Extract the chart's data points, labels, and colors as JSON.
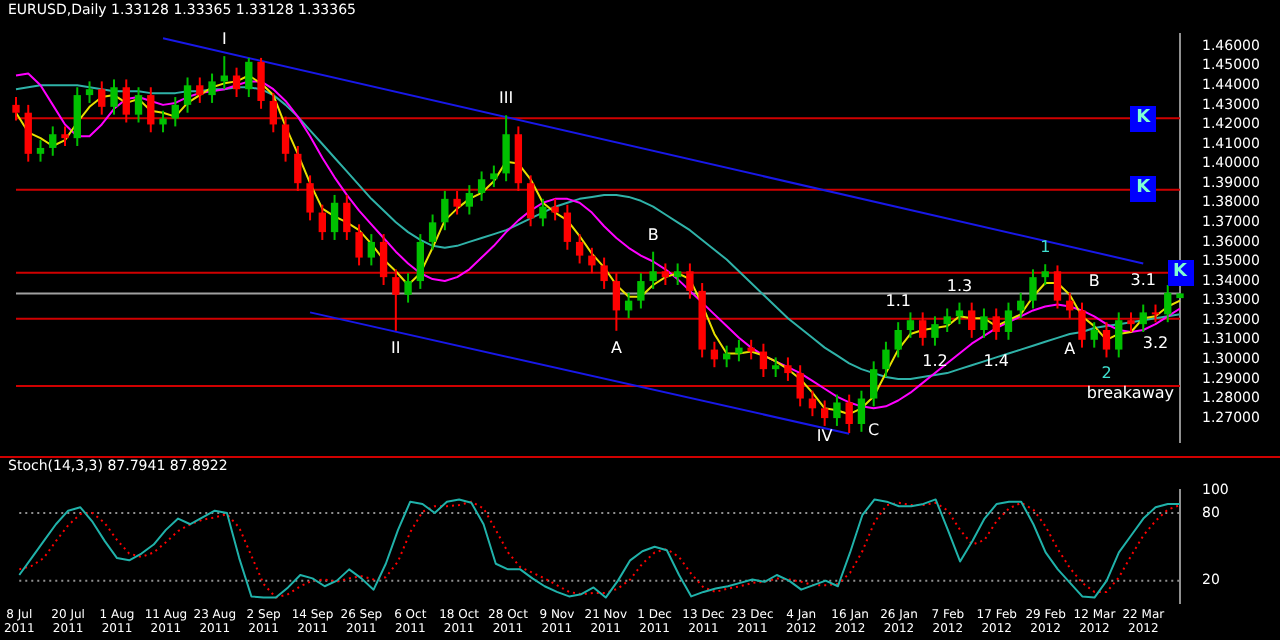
{
  "chart_data": [
    {
      "type": "candlestick",
      "title": "EURUSD,Daily  1.33128 1.33365 1.33128 1.33365",
      "categories": [
        "8 Jul 2011",
        null,
        null,
        null,
        "20 Jul 2011",
        null,
        null,
        null,
        "1 Aug 2011",
        null,
        null,
        null,
        "11 Aug 2011",
        null,
        null,
        null,
        "23 Aug 2011",
        null,
        null,
        null,
        "2 Sep 2011",
        null,
        null,
        null,
        "14 Sep 2011",
        null,
        null,
        null,
        "26 Sep 2011",
        null,
        null,
        null,
        "6 Oct 2011",
        null,
        null,
        null,
        "18 Oct 2011",
        null,
        null,
        null,
        "28 Oct 2011",
        null,
        null,
        null,
        "9 Nov 2011",
        null,
        null,
        null,
        "21 Nov 2011",
        null,
        null,
        null,
        "1 Dec 2011",
        null,
        null,
        null,
        "13 Dec 2011",
        null,
        null,
        null,
        "23 Dec 2011",
        null,
        null,
        null,
        "4 Jan 2012",
        null,
        null,
        null,
        "16 Jan 2012",
        null,
        null,
        null,
        "26 Jan 2012",
        null,
        null,
        null,
        "7 Feb 2012",
        null,
        null,
        null,
        "17 Feb 2012",
        null,
        null,
        null,
        "29 Feb 2012",
        null,
        null,
        null,
        "12 Mar 2012",
        null,
        null,
        null,
        "22 Mar 2012",
        null,
        null,
        null
      ],
      "ohlc": [
        [
          1.43,
          1.434,
          1.422,
          1.426
        ],
        [
          1.426,
          1.43,
          1.401,
          1.405
        ],
        [
          1.405,
          1.412,
          1.401,
          1.408
        ],
        [
          1.408,
          1.419,
          1.404,
          1.415
        ],
        [
          1.415,
          1.419,
          1.409,
          1.413
        ],
        [
          1.413,
          1.439,
          1.409,
          1.435
        ],
        [
          1.435,
          1.442,
          1.431,
          1.438
        ],
        [
          1.438,
          1.442,
          1.425,
          1.429
        ],
        [
          1.429,
          1.443,
          1.425,
          1.439
        ],
        [
          1.439,
          1.443,
          1.421,
          1.425
        ],
        [
          1.425,
          1.439,
          1.421,
          1.435
        ],
        [
          1.435,
          1.439,
          1.416,
          1.42
        ],
        [
          1.42,
          1.427,
          1.416,
          1.423
        ],
        [
          1.423,
          1.434,
          1.419,
          1.43
        ],
        [
          1.43,
          1.444,
          1.426,
          1.44
        ],
        [
          1.44,
          1.444,
          1.431,
          1.435
        ],
        [
          1.435,
          1.446,
          1.431,
          1.442
        ],
        [
          1.442,
          1.4549,
          1.438,
          1.445
        ],
        [
          1.445,
          1.449,
          1.434,
          1.438
        ],
        [
          1.438,
          1.454,
          1.434,
          1.452
        ],
        [
          1.452,
          1.454,
          1.428,
          1.432
        ],
        [
          1.432,
          1.436,
          1.416,
          1.42
        ],
        [
          1.42,
          1.424,
          1.401,
          1.405
        ],
        [
          1.405,
          1.409,
          1.386,
          1.39
        ],
        [
          1.39,
          1.394,
          1.371,
          1.375
        ],
        [
          1.375,
          1.379,
          1.361,
          1.365
        ],
        [
          1.365,
          1.384,
          1.361,
          1.38
        ],
        [
          1.38,
          1.384,
          1.361,
          1.365
        ],
        [
          1.365,
          1.369,
          1.348,
          1.352
        ],
        [
          1.352,
          1.364,
          1.348,
          1.36
        ],
        [
          1.36,
          1.364,
          1.338,
          1.342
        ],
        [
          1.342,
          1.346,
          1.3146,
          1.333
        ],
        [
          1.333,
          1.344,
          1.329,
          1.34
        ],
        [
          1.34,
          1.364,
          1.336,
          1.36
        ],
        [
          1.36,
          1.374,
          1.356,
          1.37
        ],
        [
          1.37,
          1.386,
          1.366,
          1.382
        ],
        [
          1.382,
          1.386,
          1.374,
          1.378
        ],
        [
          1.378,
          1.389,
          1.374,
          1.385
        ],
        [
          1.385,
          1.396,
          1.381,
          1.392
        ],
        [
          1.392,
          1.399,
          1.388,
          1.395
        ],
        [
          1.395,
          1.4247,
          1.391,
          1.415
        ],
        [
          1.415,
          1.419,
          1.386,
          1.39
        ],
        [
          1.39,
          1.394,
          1.368,
          1.372
        ],
        [
          1.372,
          1.382,
          1.368,
          1.378
        ],
        [
          1.378,
          1.382,
          1.371,
          1.375
        ],
        [
          1.375,
          1.379,
          1.356,
          1.36
        ],
        [
          1.36,
          1.364,
          1.349,
          1.353
        ],
        [
          1.353,
          1.357,
          1.344,
          1.348
        ],
        [
          1.348,
          1.352,
          1.336,
          1.34
        ],
        [
          1.34,
          1.344,
          1.3146,
          1.325
        ],
        [
          1.325,
          1.334,
          1.321,
          1.33
        ],
        [
          1.33,
          1.344,
          1.326,
          1.34
        ],
        [
          1.34,
          1.355,
          1.336,
          1.345
        ],
        [
          1.345,
          1.349,
          1.338,
          1.342
        ],
        [
          1.342,
          1.349,
          1.338,
          1.345
        ],
        [
          1.345,
          1.349,
          1.331,
          1.335
        ],
        [
          1.335,
          1.339,
          1.301,
          1.305
        ],
        [
          1.305,
          1.309,
          1.296,
          1.3
        ],
        [
          1.3,
          1.307,
          1.296,
          1.303
        ],
        [
          1.303,
          1.31,
          1.299,
          1.306
        ],
        [
          1.306,
          1.31,
          1.3,
          1.304
        ],
        [
          1.304,
          1.308,
          1.291,
          1.295
        ],
        [
          1.295,
          1.301,
          1.291,
          1.297
        ],
        [
          1.297,
          1.301,
          1.289,
          1.293
        ],
        [
          1.293,
          1.297,
          1.276,
          1.28
        ],
        [
          1.28,
          1.284,
          1.271,
          1.275
        ],
        [
          1.275,
          1.279,
          1.266,
          1.27
        ],
        [
          1.27,
          1.282,
          1.266,
          1.278
        ],
        [
          1.278,
          1.282,
          1.2624,
          1.267
        ],
        [
          1.267,
          1.284,
          1.263,
          1.28
        ],
        [
          1.28,
          1.299,
          1.276,
          1.295
        ],
        [
          1.295,
          1.309,
          1.291,
          1.305
        ],
        [
          1.305,
          1.319,
          1.301,
          1.315
        ],
        [
          1.315,
          1.324,
          1.311,
          1.32
        ],
        [
          1.32,
          1.324,
          1.307,
          1.311
        ],
        [
          1.311,
          1.322,
          1.307,
          1.318
        ],
        [
          1.318,
          1.326,
          1.314,
          1.322
        ],
        [
          1.322,
          1.329,
          1.318,
          1.325
        ],
        [
          1.325,
          1.329,
          1.311,
          1.315
        ],
        [
          1.315,
          1.326,
          1.311,
          1.322
        ],
        [
          1.322,
          1.326,
          1.31,
          1.314
        ],
        [
          1.314,
          1.329,
          1.31,
          1.325
        ],
        [
          1.325,
          1.334,
          1.321,
          1.33
        ],
        [
          1.33,
          1.346,
          1.326,
          1.342
        ],
        [
          1.342,
          1.3486,
          1.338,
          1.345
        ],
        [
          1.345,
          1.348,
          1.326,
          1.33
        ],
        [
          1.33,
          1.334,
          1.321,
          1.325
        ],
        [
          1.325,
          1.329,
          1.306,
          1.31
        ],
        [
          1.31,
          1.319,
          1.306,
          1.315
        ],
        [
          1.315,
          1.319,
          1.301,
          1.305
        ],
        [
          1.305,
          1.324,
          1.301,
          1.32
        ],
        [
          1.32,
          1.324,
          1.314,
          1.318
        ],
        [
          1.318,
          1.328,
          1.314,
          1.324
        ],
        [
          1.324,
          1.328,
          1.319,
          1.323
        ],
        [
          1.323,
          1.338,
          1.319,
          1.334
        ],
        [
          1.3313,
          1.3337,
          1.3313,
          1.3337
        ]
      ],
      "series": [
        {
          "type": "line",
          "color": "#e8e000",
          "values": [
            1.426,
            1.416,
            1.413,
            1.409,
            1.412,
            1.421,
            1.429,
            1.434,
            1.435,
            1.431,
            1.433,
            1.427,
            1.426,
            1.424,
            1.431,
            1.435,
            1.439,
            1.441,
            1.442,
            1.445,
            1.441,
            1.435,
            1.419,
            1.405,
            1.39,
            1.377,
            1.373,
            1.37,
            1.366,
            1.359,
            1.351,
            1.345,
            1.338,
            1.344,
            1.357,
            1.371,
            1.377,
            1.382,
            1.385,
            1.391,
            1.401,
            1.4,
            1.392,
            1.38,
            1.375,
            1.371,
            1.363,
            1.354,
            1.347,
            1.338,
            1.332,
            1.332,
            1.338,
            1.342,
            1.344,
            1.341,
            1.328,
            1.313,
            1.303,
            1.303,
            1.304,
            1.302,
            1.299,
            1.295,
            1.29,
            1.283,
            1.275,
            1.274,
            1.272,
            1.275,
            1.281,
            1.293,
            1.305,
            1.313,
            1.315,
            1.316,
            1.317,
            1.322,
            1.321,
            1.321,
            1.317,
            1.32,
            1.323,
            1.332,
            1.339,
            1.339,
            1.333,
            1.322,
            1.317,
            1.31,
            1.313,
            1.314,
            1.321,
            1.322,
            1.327,
            1.33
          ]
        },
        {
          "type": "line",
          "color": "#ff00ff",
          "values": [
            1.445,
            1.446,
            1.44,
            1.43,
            1.42,
            1.414,
            1.414,
            1.42,
            1.428,
            1.433,
            1.434,
            1.432,
            1.43,
            1.431,
            1.434,
            1.436,
            1.437,
            1.438,
            1.44,
            1.442,
            1.442,
            1.438,
            1.432,
            1.424,
            1.414,
            1.403,
            1.393,
            1.384,
            1.376,
            1.369,
            1.362,
            1.355,
            1.349,
            1.344,
            1.341,
            1.34,
            1.342,
            1.346,
            1.352,
            1.358,
            1.365,
            1.371,
            1.376,
            1.38,
            1.382,
            1.382,
            1.38,
            1.375,
            1.368,
            1.362,
            1.357,
            1.353,
            1.35,
            1.346,
            1.341,
            1.335,
            1.329,
            1.323,
            1.317,
            1.311,
            1.306,
            1.302,
            1.299,
            1.296,
            1.293,
            1.289,
            1.285,
            1.281,
            1.278,
            1.276,
            1.275,
            1.276,
            1.279,
            1.283,
            1.288,
            1.293,
            1.298,
            1.303,
            1.308,
            1.312,
            1.316,
            1.319,
            1.322,
            1.325,
            1.327,
            1.328,
            1.327,
            1.325,
            1.322,
            1.318,
            1.315,
            1.314,
            1.315,
            1.318,
            1.322,
            1.326
          ]
        },
        {
          "type": "line",
          "color": "#2fb2a8",
          "values": [
            1.438,
            1.439,
            1.44,
            1.44,
            1.44,
            1.44,
            1.439,
            1.438,
            1.437,
            1.437,
            1.437,
            1.436,
            1.436,
            1.436,
            1.437,
            1.437,
            1.438,
            1.438,
            1.439,
            1.439,
            1.438,
            1.435,
            1.43,
            1.424,
            1.417,
            1.41,
            1.403,
            1.396,
            1.389,
            1.382,
            1.376,
            1.37,
            1.365,
            1.361,
            1.358,
            1.357,
            1.358,
            1.36,
            1.362,
            1.364,
            1.366,
            1.369,
            1.372,
            1.375,
            1.378,
            1.38,
            1.382,
            1.383,
            1.384,
            1.384,
            1.383,
            1.381,
            1.378,
            1.374,
            1.37,
            1.366,
            1.361,
            1.356,
            1.351,
            1.345,
            1.339,
            1.333,
            1.327,
            1.321,
            1.316,
            1.311,
            1.306,
            1.302,
            1.298,
            1.295,
            1.293,
            1.291,
            1.29,
            1.29,
            1.291,
            1.292,
            1.293,
            1.295,
            1.297,
            1.299,
            1.301,
            1.303,
            1.305,
            1.307,
            1.309,
            1.311,
            1.313,
            1.314,
            1.316,
            1.317,
            1.318,
            1.319,
            1.32,
            1.321,
            1.322,
            1.323
          ]
        },
        {
          "type": "line",
          "color": "#1818e8",
          "x": [
            "11 Aug 2011",
            "22 Mar 2012"
          ],
          "values": [
            1.464,
            1.349
          ]
        },
        {
          "type": "line",
          "color": "#1818e8",
          "x": [
            "14 Sep 2011",
            "16 Jan 2012"
          ],
          "values": [
            1.324,
            1.262
          ]
        }
      ],
      "ylim": [
        1.258,
        1.466
      ],
      "yticks": [
        {
          "value": 1.27,
          "label": "1.27000"
        },
        {
          "value": 1.28,
          "label": "1.28000"
        },
        {
          "value": 1.29,
          "label": "1.29000"
        },
        {
          "value": 1.3,
          "label": "1.30000"
        },
        {
          "value": 1.31,
          "label": "1.31000"
        },
        {
          "value": 1.32,
          "label": "1.32000"
        },
        {
          "value": 1.33,
          "label": "1.33000"
        },
        {
          "value": 1.34,
          "label": "1.34000"
        },
        {
          "value": 1.35,
          "label": "1.35000"
        },
        {
          "value": 1.36,
          "label": "1.36000"
        },
        {
          "value": 1.37,
          "label": "1.37000"
        },
        {
          "value": 1.38,
          "label": "1.38000"
        },
        {
          "value": 1.39,
          "label": "1.39000"
        },
        {
          "value": 1.4,
          "label": "1.40000"
        },
        {
          "value": 1.41,
          "label": "1.41000"
        },
        {
          "value": 1.42,
          "label": "1.42000"
        },
        {
          "value": 1.43,
          "label": "1.43000"
        },
        {
          "value": 1.44,
          "label": "1.44000"
        },
        {
          "value": 1.45,
          "label": "1.45000"
        },
        {
          "value": 1.46,
          "label": "1.46000"
        }
      ],
      "ref_lines": [
        {
          "axis": "y",
          "value": 1.4232,
          "color": "#d00000"
        },
        {
          "axis": "y",
          "value": 1.3866,
          "color": "#d00000"
        },
        {
          "axis": "y",
          "value": 1.3442,
          "color": "#d00000"
        },
        {
          "axis": "y",
          "value": 1.3208,
          "color": "#d00000"
        },
        {
          "axis": "y",
          "value": 1.2864,
          "color": "#d00000"
        },
        {
          "axis": "y",
          "value": 1.3337,
          "color": "#a0a0a0"
        }
      ],
      "annotations": [
        {
          "text": "I",
          "y": 1.4549
        },
        {
          "text": "II",
          "y": 1.3146
        },
        {
          "text": "III",
          "y": 1.4247
        },
        {
          "text": "IV",
          "y": 1.2624
        },
        {
          "text": "A",
          "y": 1.3146
        },
        {
          "text": "B",
          "y": 1.355
        },
        "C",
        {
          "text": "1.1",
          "y": 1.319
        },
        {
          "text": "1.2",
          "y": 1.307
        },
        {
          "text": "1.3",
          "y": 1.329
        },
        {
          "text": "1.4",
          "y": 1.31
        },
        {
          "text": "1",
          "y": 1.3486
        },
        {
          "text": "A",
          "y": 1.321
        },
        {
          "text": "B",
          "y": 1.319
        },
        {
          "text": "2",
          "y": 1.301
        },
        {
          "text": "3.1",
          "y": 1.328
        },
        {
          "text": "3.2",
          "y": 1.314
        },
        "breakaway",
        "K",
        "K",
        "K"
      ],
      "tick_labels": "y"
    },
    {
      "type": "line",
      "categories": [
        "8 Jul 2011",
        null,
        null,
        null,
        "20 Jul 2011",
        null,
        null,
        null,
        "1 Aug 2011",
        null,
        null,
        null,
        "11 Aug 2011",
        null,
        null,
        null,
        "23 Aug 2011",
        null,
        null,
        null,
        "2 Sep 2011",
        null,
        null,
        null,
        "14 Sep 2011",
        null,
        null,
        null,
        "26 Sep 2011",
        null,
        null,
        null,
        "6 Oct 2011",
        null,
        null,
        null,
        "18 Oct 2011",
        null,
        null,
        null,
        "28 Oct 2011",
        null,
        null,
        null,
        "9 Nov 2011",
        null,
        null,
        null,
        "21 Nov 2011",
        null,
        null,
        null,
        "1 Dec 2011",
        null,
        null,
        null,
        "13 Dec 2011",
        null,
        null,
        null,
        "23 Dec 2011",
        null,
        null,
        null,
        "4 Jan 2012",
        null,
        null,
        null,
        "16 Jan 2012",
        null,
        null,
        null,
        "26 Jan 2012",
        null,
        null,
        null,
        "7 Feb 2012",
        null,
        null,
        null,
        "17 Feb 2012",
        null,
        null,
        null,
        "29 Feb 2012",
        null,
        null,
        null,
        "12 Mar 2012",
        null,
        null,
        null,
        "22 Mar 2012",
        null,
        null,
        null
      ],
      "series": [
        {
          "color": "#20b2aa",
          "values": [
            25,
            40,
            55,
            70,
            82,
            85,
            72,
            55,
            40,
            38,
            44,
            52,
            65,
            75,
            70,
            76,
            82,
            80,
            40,
            6,
            5,
            5,
            14,
            25,
            22,
            15,
            20,
            30,
            22,
            12,
            35,
            65,
            90,
            88,
            80,
            90,
            92,
            89,
            70,
            35,
            30,
            30,
            22,
            15,
            10,
            6,
            8,
            14,
            5,
            20,
            38,
            46,
            50,
            47,
            25,
            6,
            10,
            13,
            15,
            18,
            21,
            19,
            25,
            20,
            12,
            16,
            20,
            15,
            45,
            78,
            92,
            90,
            86,
            86,
            88,
            92,
            65,
            37,
            55,
            75,
            88,
            90,
            90,
            70,
            45,
            30,
            18,
            6,
            5,
            20,
            45,
            60,
            75,
            85,
            88,
            88
          ]
        },
        {
          "color": "#ff0000",
          "line_style": "dotted",
          "values": [
            30,
            33,
            40,
            55,
            69,
            79,
            80,
            71,
            56,
            44,
            41,
            45,
            54,
            64,
            70,
            74,
            76,
            79,
            67,
            42,
            17,
            5,
            8,
            15,
            20,
            21,
            19,
            22,
            24,
            21,
            23,
            37,
            63,
            81,
            86,
            86,
            87,
            90,
            84,
            65,
            45,
            32,
            27,
            22,
            16,
            10,
            8,
            9,
            9,
            13,
            21,
            35,
            45,
            48,
            41,
            26,
            14,
            10,
            13,
            15,
            18,
            19,
            22,
            21,
            19,
            16,
            16,
            17,
            27,
            46,
            72,
            87,
            89,
            87,
            87,
            89,
            82,
            65,
            52,
            56,
            73,
            84,
            89,
            83,
            68,
            48,
            31,
            18,
            10,
            10,
            23,
            42,
            60,
            73,
            83,
            87
          ]
        }
      ],
      "ylim": [
        0,
        100
      ],
      "yticks": [
        20,
        80,
        100
      ],
      "ref_lines": [
        {
          "axis": "y",
          "value": 20,
          "color": "#909090",
          "line_style": "dotted"
        },
        {
          "axis": "y",
          "value": 80,
          "color": "#909090",
          "line_style": "dotted"
        }
      ],
      "annotations": [
        "Stoch(14,3,3) 87.7941 87.8922"
      ]
    }
  ]
}
